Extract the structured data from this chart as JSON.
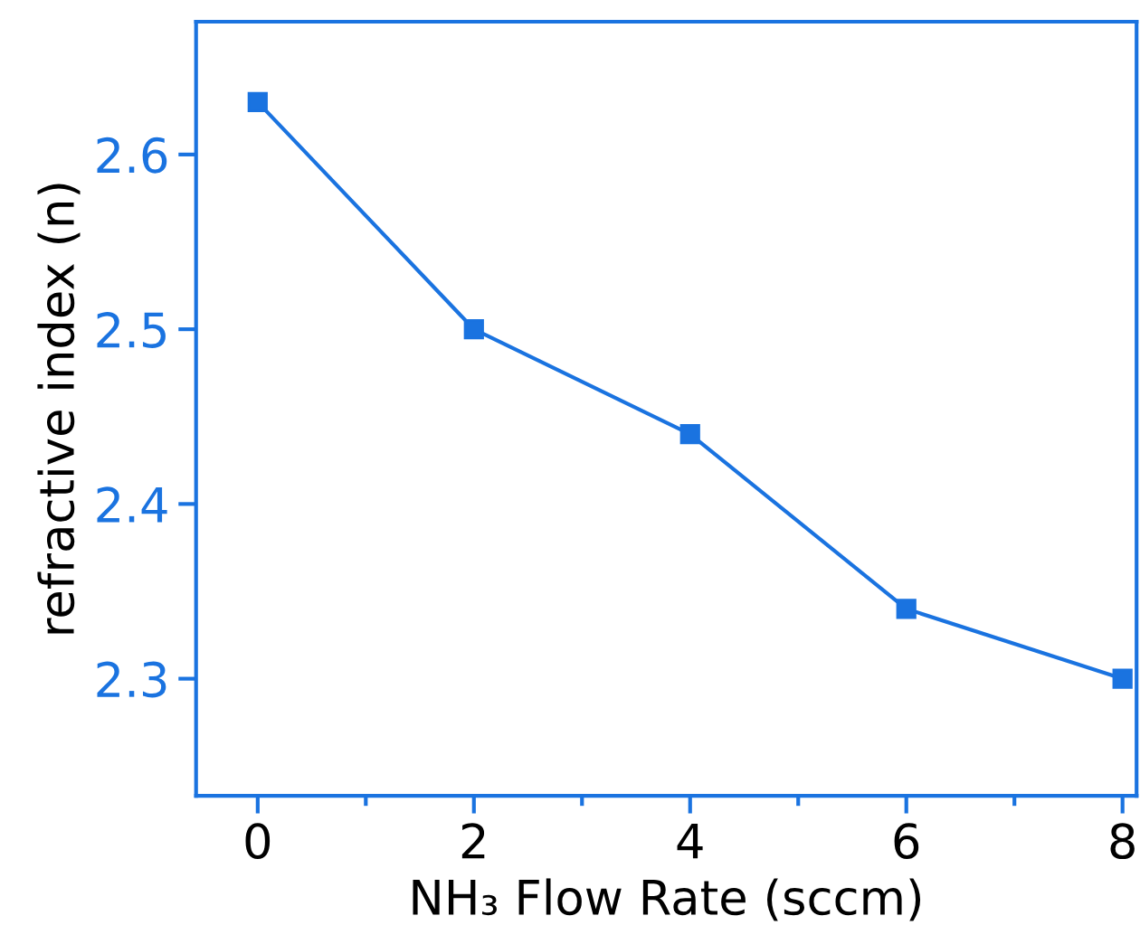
{
  "chart_data": {
    "type": "line",
    "xlabel": "NH₃ Flow Rate (sccm)",
    "ylabel": "refractive index (n)",
    "x": [
      0,
      2,
      4,
      6,
      8
    ],
    "series": [
      {
        "color": "#1a73e0",
        "values": [
          2.63,
          2.5,
          2.44,
          2.34,
          2.3
        ]
      }
    ],
    "marker": "square",
    "line_style": "solid",
    "grid": false,
    "legend": false,
    "xlim": [
      -0.57,
      8.13
    ],
    "ylim": [
      2.233,
      2.676
    ],
    "xticks": [
      0,
      {
        "value": 1,
        "label": null
      },
      2,
      {
        "value": 3,
        "label": null
      },
      4,
      {
        "value": 5,
        "label": null
      },
      6,
      {
        "value": 7,
        "label": null
      },
      8
    ],
    "yticks": [
      2.3,
      2.4,
      2.5,
      2.6
    ]
  }
}
